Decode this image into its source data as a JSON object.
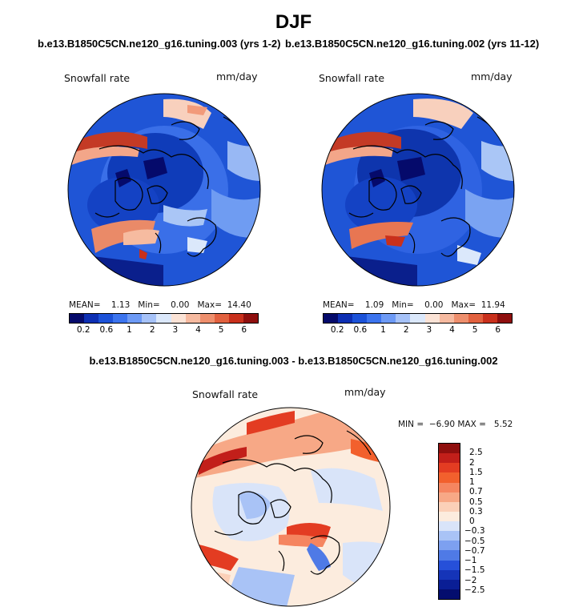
{
  "season": "DJF",
  "panels": [
    {
      "case": "b.e13.B1850C5CN.ne120_g16.tuning.003 (yrs 1-2)",
      "variable": "Snowfall rate",
      "units": "mm/day",
      "stats": {
        "mean_label": "MEAN=",
        "mean": "1.13",
        "min_label": "Min=",
        "min": "0.00",
        "max_label": "Max=",
        "max": "14.40"
      }
    },
    {
      "case": "b.e13.B1850C5CN.ne120_g16.tuning.002 (yrs 11-12)",
      "variable": "Snowfall rate",
      "units": "mm/day",
      "stats": {
        "mean_label": "MEAN=",
        "mean": "1.09",
        "min_label": "Min=",
        "min": "0.00",
        "max_label": "Max=",
        "max": "11.94"
      }
    }
  ],
  "abs_colorbar": {
    "colors": [
      "#050a6b",
      "#0d2fb3",
      "#1c52d8",
      "#3c74ee",
      "#6d9af5",
      "#a6c2f8",
      "#dbe8fb",
      "#fbe3d6",
      "#f6baa0",
      "#ee8f6d",
      "#e2613f",
      "#c9301c",
      "#8f0f0e"
    ],
    "labels": [
      "0.2",
      "0.6",
      "1",
      "2",
      "3",
      "4",
      "5",
      "6"
    ]
  },
  "diff": {
    "title": "b.e13.B1850C5CN.ne120_g16.tuning.003 - b.e13.B1850C5CN.ne120_g16.tuning.002",
    "variable": "Snowfall rate",
    "units": "mm/day",
    "stats_text": "MIN =  −6.90 MAX =   5.52",
    "colors": [
      "#8f0f0e",
      "#c21f1a",
      "#e33c22",
      "#f2602d",
      "#f58560",
      "#f7a886",
      "#fbd0b8",
      "#fcecde",
      "#d9e4f9",
      "#a9c3f6",
      "#7da0f0",
      "#4f7ae6",
      "#2650d9",
      "#1534b8",
      "#0a1e95",
      "#040d6e"
    ],
    "labels": [
      "2.5",
      "2",
      "1.5",
      "1",
      "0.7",
      "0.5",
      "0.3",
      "0",
      "−0.3",
      "−0.5",
      "−0.7",
      "−1",
      "−1.5",
      "−2",
      "−2.5"
    ]
  }
}
